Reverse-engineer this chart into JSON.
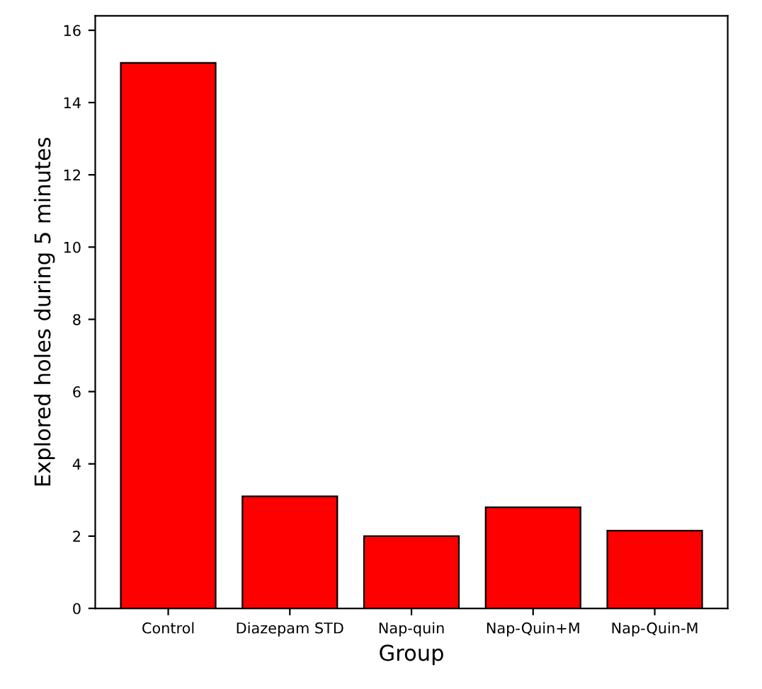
{
  "chart_data": {
    "type": "bar",
    "xlabel": "Group",
    "ylabel": "Explored holes during 5 minutes",
    "categories": [
      "Control",
      "Diazepam STD",
      "Nap-quin",
      "Nap-Quin+M",
      "Nap-Quin-M"
    ],
    "values": [
      15.1,
      3.1,
      2.0,
      2.8,
      2.15
    ],
    "color": "#ff0000",
    "ylim": [
      0,
      16.4
    ],
    "yticks": [
      0,
      2,
      4,
      6,
      8,
      10,
      12,
      14,
      16
    ],
    "grid": false,
    "legend": false
  }
}
